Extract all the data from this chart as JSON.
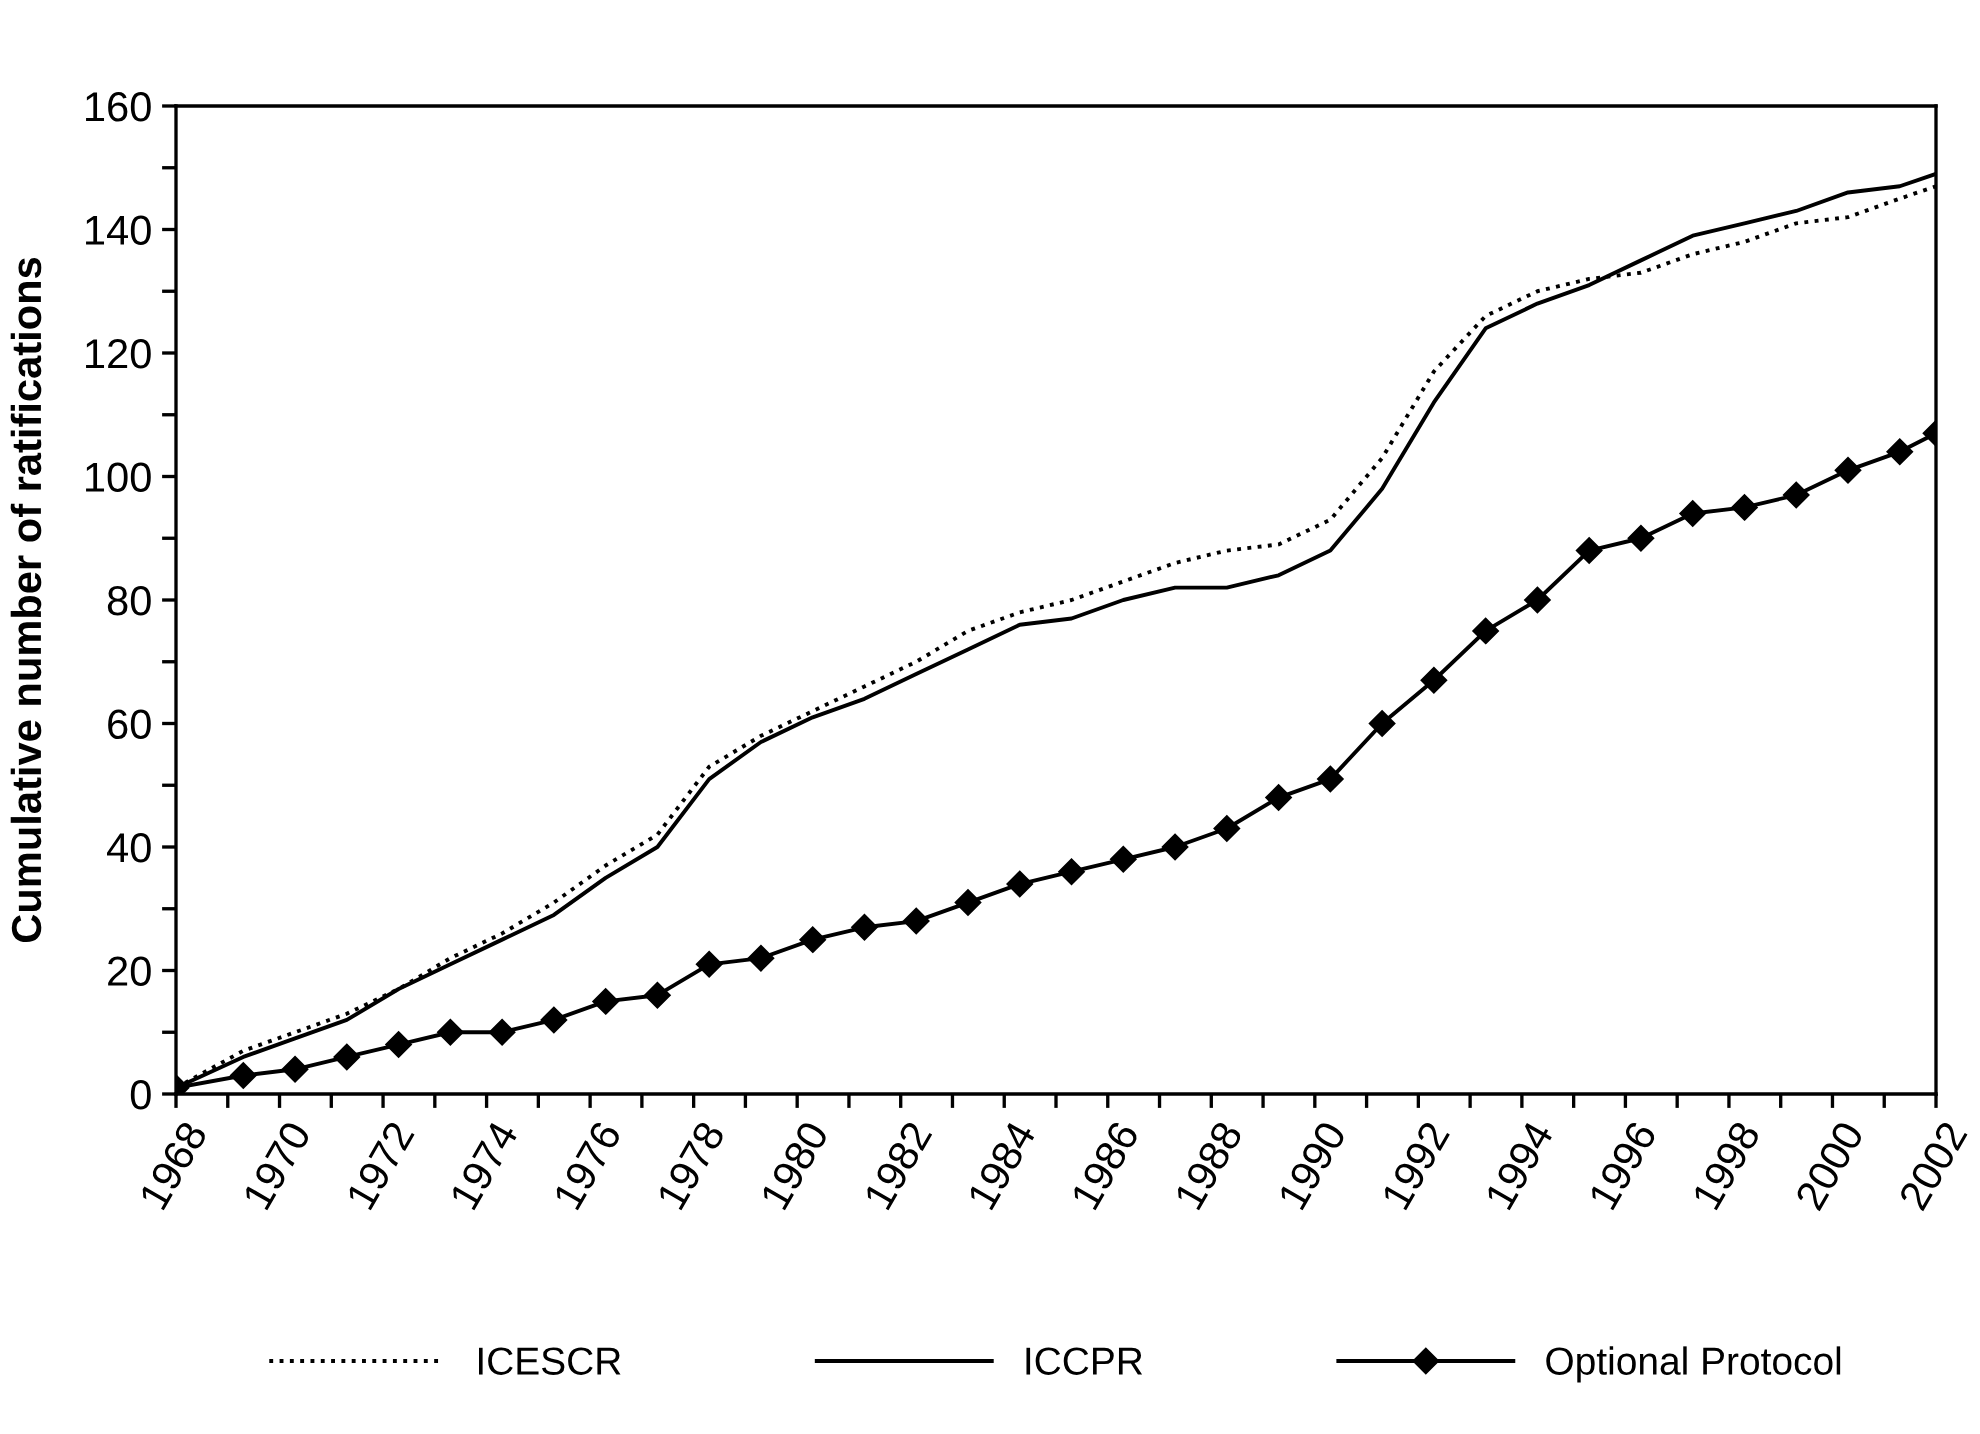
{
  "chart_data": {
    "type": "line",
    "ylabel": "Cumulative number of ratifications",
    "x": [
      1968,
      1969.3,
      1970.3,
      1971.3,
      1972.3,
      1973.3,
      1974.3,
      1975.3,
      1976.3,
      1977.3,
      1978.3,
      1979.3,
      1980.3,
      1981.3,
      1982.3,
      1983.3,
      1984.3,
      1985.3,
      1986.3,
      1987.3,
      1988.3,
      1989.3,
      1990.3,
      1991.3,
      1992.3,
      1993.3,
      1994.3,
      1995.3,
      1996.3,
      1997.3,
      1998.3,
      1999.3,
      2000.3,
      2001.3,
      2002
    ],
    "series": [
      {
        "name": "ICESCR",
        "color": "#000000",
        "line_style": "dotted",
        "marker": "none",
        "values": [
          1,
          7,
          10,
          13,
          17,
          22,
          26,
          31,
          37,
          42,
          53,
          58,
          62,
          66,
          70,
          75,
          78,
          80,
          83,
          86,
          88,
          89,
          93,
          103,
          117,
          126,
          130,
          132,
          133,
          136,
          138,
          141,
          142,
          145,
          147
        ]
      },
      {
        "name": "ICCPR",
        "color": "#000000",
        "line_style": "solid",
        "marker": "none",
        "values": [
          1,
          6,
          9,
          12,
          17,
          21,
          25,
          29,
          35,
          40,
          51,
          57,
          61,
          64,
          68,
          72,
          76,
          77,
          80,
          82,
          82,
          84,
          88,
          98,
          112,
          124,
          128,
          131,
          135,
          139,
          141,
          143,
          146,
          147,
          149
        ]
      },
      {
        "name": "Optional Protocol",
        "color": "#000000",
        "line_style": "solid",
        "marker": "diamond",
        "values": [
          1,
          3,
          4,
          6,
          8,
          10,
          10,
          12,
          15,
          16,
          21,
          22,
          25,
          27,
          28,
          31,
          34,
          36,
          38,
          40,
          43,
          48,
          51,
          60,
          67,
          75,
          80,
          88,
          90,
          94,
          95,
          97,
          101,
          104,
          107
        ]
      }
    ],
    "xlim": [
      1968,
      2002
    ],
    "xticks": [
      1968,
      {
        "value": 1969,
        "label": null
      },
      1970,
      {
        "value": 1971,
        "label": null
      },
      1972,
      {
        "value": 1973,
        "label": null
      },
      1974,
      {
        "value": 1975,
        "label": null
      },
      1976,
      {
        "value": 1977,
        "label": null
      },
      1978,
      {
        "value": 1979,
        "label": null
      },
      1980,
      {
        "value": 1981,
        "label": null
      },
      1982,
      {
        "value": 1983,
        "label": null
      },
      1984,
      {
        "value": 1985,
        "label": null
      },
      1986,
      {
        "value": 1987,
        "label": null
      },
      1988,
      {
        "value": 1989,
        "label": null
      },
      1990,
      {
        "value": 1991,
        "label": null
      },
      1992,
      {
        "value": 1993,
        "label": null
      },
      1994,
      {
        "value": 1995,
        "label": null
      },
      1996,
      {
        "value": 1997,
        "label": null
      },
      1998,
      {
        "value": 1999,
        "label": null
      },
      2000,
      {
        "value": 2001,
        "label": null
      },
      2002
    ],
    "ylim": [
      0,
      160
    ],
    "yticks": [
      0,
      {
        "value": 10,
        "label": null
      },
      20,
      {
        "value": 30,
        "label": null
      },
      40,
      {
        "value": 50,
        "label": null
      },
      60,
      {
        "value": 70,
        "label": null
      },
      80,
      {
        "value": 90,
        "label": null
      },
      100,
      {
        "value": 110,
        "label": null
      },
      120,
      {
        "value": 130,
        "label": null
      },
      140,
      {
        "value": 150,
        "label": null
      },
      160
    ],
    "grid": false,
    "legend": "bottom"
  }
}
